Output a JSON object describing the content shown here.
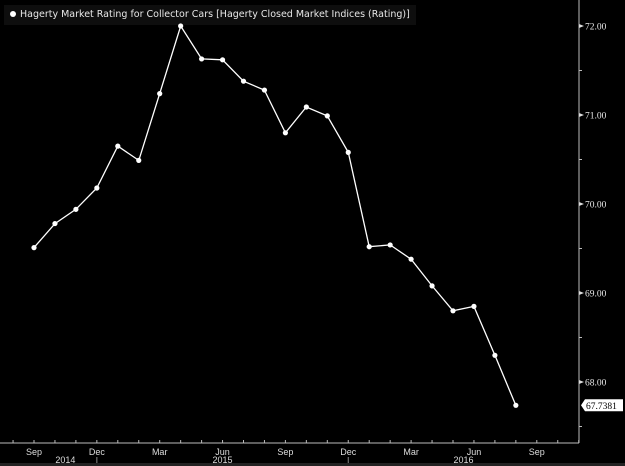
{
  "chart_data": {
    "type": "line",
    "title": "",
    "legend": [
      "Hagerty Market Rating for Collector Cars [Hagerty Closed Market Indices (Rating)]"
    ],
    "legend_position": "top-left",
    "xlabel": "",
    "ylabel": "",
    "x": [
      "2014-09",
      "2014-10",
      "2014-11",
      "2014-12",
      "2015-01",
      "2015-02",
      "2015-03",
      "2015-04",
      "2015-05",
      "2015-06",
      "2015-07",
      "2015-08",
      "2015-09",
      "2015-10",
      "2015-11",
      "2015-12",
      "2016-01",
      "2016-02",
      "2016-03",
      "2016-04",
      "2016-05",
      "2016-06",
      "2016-07",
      "2016-08"
    ],
    "series": [
      {
        "name": "Hagerty Market Rating for Collector Cars [Hagerty Closed Market Indices (Rating)]",
        "values": [
          69.51,
          69.78,
          69.94,
          70.18,
          70.65,
          70.49,
          71.24,
          72.0,
          71.63,
          71.62,
          71.38,
          71.28,
          70.8,
          71.09,
          70.99,
          70.58,
          69.52,
          69.54,
          69.38,
          69.08,
          68.8,
          68.85,
          68.3,
          67.7381
        ]
      }
    ],
    "last_value_label": "67.7381",
    "ylim": [
      67.3,
      72.3
    ],
    "y_ticks": [
      68,
      69,
      70,
      71,
      72
    ],
    "y_tick_labels": [
      "68.00",
      "69.00",
      "70.00",
      "71.00",
      "72.00"
    ],
    "x_tick_labels": [
      {
        "label": "Sep",
        "month_index": 0
      },
      {
        "label": "Dec",
        "month_index": 3
      },
      {
        "label": "Mar",
        "month_index": 6
      },
      {
        "label": "Jun",
        "month_index": 9
      },
      {
        "label": "Sep",
        "month_index": 12
      },
      {
        "label": "Dec",
        "month_index": 15
      },
      {
        "label": "Mar",
        "month_index": 18
      },
      {
        "label": "Jun",
        "month_index": 21
      },
      {
        "label": "Sep",
        "month_index": 24
      }
    ],
    "year_labels": [
      {
        "label": "2014",
        "month_center": 1.5
      },
      {
        "label": "2015",
        "month_center": 9
      },
      {
        "label": "2016",
        "month_center": 20.5
      }
    ],
    "year_separators": [
      3,
      15
    ],
    "grid": false,
    "colors": {
      "background": "#000000",
      "line": "#ffffff",
      "axis": "#cccccc"
    }
  }
}
